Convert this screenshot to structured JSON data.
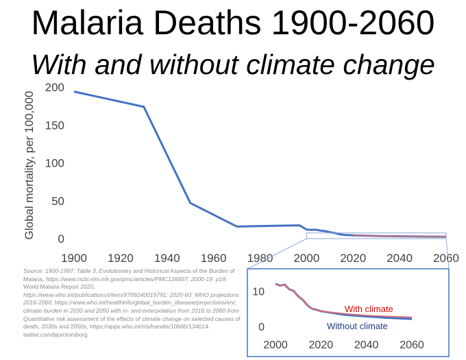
{
  "title": "Malaria Deaths 1900-2060",
  "subtitle": "With and without climate change",
  "colors": {
    "line": "#4472c4",
    "with_climate": "#e46c6c",
    "without_climate": "#1f3a8a",
    "with_label": "#e00000",
    "without_label": "#1f3a8a",
    "frame": "#4472c4"
  },
  "chart_data": [
    {
      "type": "line",
      "title": "",
      "xlabel": "",
      "ylabel": "Global mortality, per 100,000",
      "xlim": [
        1900,
        2060
      ],
      "ylim": [
        0,
        200
      ],
      "grid": false,
      "x_ticks": [
        "1900",
        "1920",
        "1940",
        "1960",
        "1980",
        "2000",
        "2020",
        "2040",
        "2060"
      ],
      "y_ticks": [
        "0",
        "50",
        "100",
        "150",
        "200"
      ],
      "series": [
        {
          "x": [
            1900,
            1930,
            1950,
            1970,
            1997,
            2000,
            2002,
            2004,
            2006,
            2008,
            2010,
            2012,
            2014,
            2016,
            2019,
            2020,
            2030,
            2040,
            2050,
            2060
          ],
          "y": [
            194,
            174,
            47,
            16,
            17.5,
            12,
            11.5,
            11.8,
            10.5,
            10,
            8.5,
            7.5,
            6,
            5,
            4.5,
            4.3,
            3.5,
            3,
            2.7,
            2.5
          ]
        }
      ]
    },
    {
      "type": "line",
      "title": "",
      "xlim": [
        2000,
        2060
      ],
      "ylim": [
        0,
        12
      ],
      "grid": false,
      "x_ticks": [
        "2000",
        "2020",
        "2040",
        "2060"
      ],
      "y_ticks": [
        "0",
        "10"
      ],
      "annotations": [
        "With climate",
        "Without climate"
      ],
      "series": [
        {
          "name": "With climate",
          "x": [
            2000,
            2002,
            2004,
            2006,
            2008,
            2010,
            2012,
            2014,
            2016,
            2019,
            2020,
            2030,
            2040,
            2050,
            2060
          ],
          "y": [
            12,
            11.5,
            11.8,
            10.5,
            10,
            8.5,
            7.5,
            6,
            5,
            4.5,
            4.3,
            3.6,
            3.1,
            2.8,
            2.6
          ]
        },
        {
          "name": "Without climate",
          "x": [
            2000,
            2002,
            2004,
            2006,
            2008,
            2010,
            2012,
            2014,
            2016,
            2019,
            2020,
            2030,
            2040,
            2050,
            2060
          ],
          "y": [
            12,
            11.5,
            11.8,
            10.5,
            10,
            8.5,
            7.5,
            6,
            5,
            4.5,
            4.3,
            3.3,
            2.8,
            2.4,
            2.1
          ]
        }
      ]
    }
  ],
  "source": {
    "p1": "Source: 1900-1997: Table 3, ",
    "p2": "Evolutionary and Historical Aspects of the Burden of Malaria, ",
    "p3": "https://www.ncbi.nlm.nih.gov/pmc/articles/PMC126857;  2000-19: p19, ",
    "p4": "World Malaria Report 2020, ",
    "p5": "https://www.who.int/publications/i/item/9789240015791; 2020-60: WHO projections 2016-2060, ",
    "p6": "https://www.who.int/healthinfo/global_burden_disease/projections/en/; ",
    "p7": "climate burden in 2030 and 2050 with in- and exterpolation from 2016 to 2060 from ",
    "p8": "Quantitative risk assessment of the effects of climate change on selected causes of death, 2030s and 2050s, https://apps.who.int/iris/handle/10665/134014.",
    "p9": " twitter.com/bjornlomborg"
  }
}
